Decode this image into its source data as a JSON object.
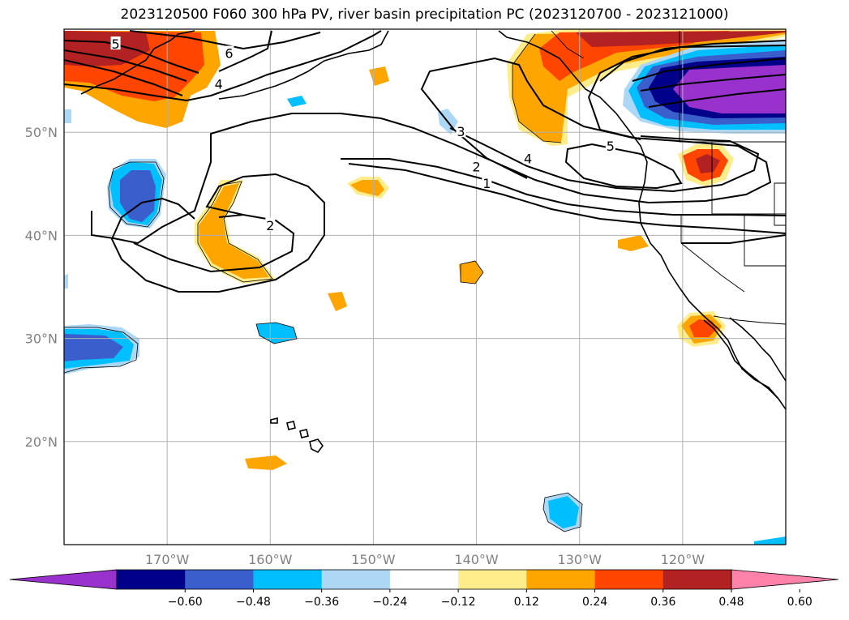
{
  "title": "2023120500 F060 300 hPa PV, river basin precipitation PC (2023120700 - 2023121000)",
  "map": {
    "lon_range": [
      -180,
      -110
    ],
    "lat_range": [
      10,
      60
    ],
    "lon_ticks": [
      {
        "value": -170,
        "label": "170°W"
      },
      {
        "value": -160,
        "label": "160°W"
      },
      {
        "value": -150,
        "label": "150°W"
      },
      {
        "value": -140,
        "label": "140°W"
      },
      {
        "value": -130,
        "label": "130°W"
      },
      {
        "value": -120,
        "label": "120°W"
      }
    ],
    "lat_ticks": [
      {
        "value": 20,
        "label": "20°N"
      },
      {
        "value": 30,
        "label": "30°N"
      },
      {
        "value": 40,
        "label": "40°N"
      },
      {
        "value": 50,
        "label": "50°N"
      }
    ],
    "grid": true
  },
  "contour_labels": [
    {
      "text": "5",
      "lon": -175,
      "lat": 58.5
    },
    {
      "text": "6",
      "lon": -164,
      "lat": 57.6
    },
    {
      "text": "4",
      "lon": -165,
      "lat": 54.6
    },
    {
      "text": "3",
      "lon": -141.5,
      "lat": 50.0
    },
    {
      "text": "2",
      "lon": -140,
      "lat": 46.6
    },
    {
      "text": "1",
      "lon": -139,
      "lat": 45.0
    },
    {
      "text": "4",
      "lon": -135,
      "lat": 47.4
    },
    {
      "text": "5",
      "lon": -127,
      "lat": 48.6
    },
    {
      "text": "2",
      "lon": -160,
      "lat": 40.9
    }
  ],
  "colorbar": {
    "colors": [
      "#9932cc",
      "#00008b",
      "#3a5fcd",
      "#00bfff",
      "#add8f5",
      "#ffffff",
      "#ffec8b",
      "#ffa500",
      "#ff4500",
      "#b22222",
      "#ff82ab"
    ],
    "tick_labels": [
      "−0.60",
      "−0.48",
      "−0.36",
      "−0.24",
      "−0.12",
      "0.12",
      "0.24",
      "0.36",
      "0.48",
      "0.60"
    ],
    "extend": "both"
  }
}
